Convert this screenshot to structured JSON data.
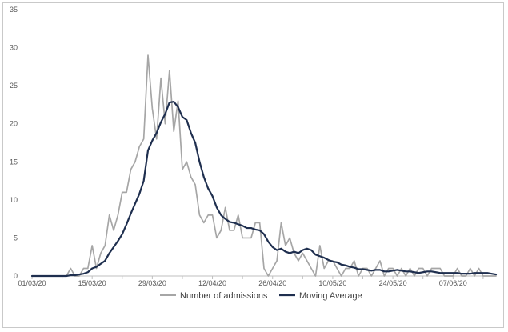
{
  "chart_data": {
    "type": "line",
    "title": "",
    "xlabel": "",
    "ylabel": "",
    "ylim": [
      0,
      35
    ],
    "yticks": [
      0,
      5,
      10,
      15,
      20,
      25,
      30,
      35
    ],
    "xlim": [
      "01/03/20",
      "17/06/20"
    ],
    "xtick_labels": [
      "01/03/20",
      "15/03/20",
      "29/03/20",
      "12/04/20",
      "26/04/20",
      "10/05/20",
      "24/05/20",
      "07/06/20"
    ],
    "legend_position": "bottom",
    "grid": false,
    "series": [
      {
        "name": "Number of admissions",
        "color": "#a6a6a6",
        "points": [
          [
            "01/03/20",
            0
          ],
          [
            "02/03/20",
            0
          ],
          [
            "03/03/20",
            0
          ],
          [
            "04/03/20",
            0
          ],
          [
            "05/03/20",
            0
          ],
          [
            "06/03/20",
            0
          ],
          [
            "07/03/20",
            0
          ],
          [
            "08/03/20",
            0
          ],
          [
            "09/03/20",
            0
          ],
          [
            "10/03/20",
            1
          ],
          [
            "11/03/20",
            0
          ],
          [
            "12/03/20",
            0
          ],
          [
            "13/03/20",
            1
          ],
          [
            "14/03/20",
            1
          ],
          [
            "15/03/20",
            4
          ],
          [
            "16/03/20",
            1
          ],
          [
            "17/03/20",
            3
          ],
          [
            "18/03/20",
            4
          ],
          [
            "19/03/20",
            8
          ],
          [
            "20/03/20",
            6
          ],
          [
            "21/03/20",
            8
          ],
          [
            "22/03/20",
            11
          ],
          [
            "23/03/20",
            11
          ],
          [
            "24/03/20",
            14
          ],
          [
            "25/03/20",
            15
          ],
          [
            "26/03/20",
            17
          ],
          [
            "27/03/20",
            18
          ],
          [
            "28/03/20",
            29
          ],
          [
            "29/03/20",
            22
          ],
          [
            "30/03/20",
            18
          ],
          [
            "31/03/20",
            26
          ],
          [
            "01/04/20",
            20
          ],
          [
            "02/04/20",
            27
          ],
          [
            "03/04/20",
            19
          ],
          [
            "04/04/20",
            23
          ],
          [
            "05/04/20",
            14
          ],
          [
            "06/04/20",
            15
          ],
          [
            "07/04/20",
            13
          ],
          [
            "08/04/20",
            12
          ],
          [
            "09/04/20",
            8
          ],
          [
            "10/04/20",
            7
          ],
          [
            "11/04/20",
            8
          ],
          [
            "12/04/20",
            8
          ],
          [
            "13/04/20",
            5
          ],
          [
            "14/04/20",
            6
          ],
          [
            "15/04/20",
            9
          ],
          [
            "16/04/20",
            6
          ],
          [
            "17/04/20",
            6
          ],
          [
            "18/04/20",
            8
          ],
          [
            "19/04/20",
            5
          ],
          [
            "20/04/20",
            5
          ],
          [
            "21/04/20",
            5
          ],
          [
            "22/04/20",
            7
          ],
          [
            "23/04/20",
            7
          ],
          [
            "24/04/20",
            1
          ],
          [
            "25/04/20",
            0
          ],
          [
            "26/04/20",
            1
          ],
          [
            "27/04/20",
            2
          ],
          [
            "28/04/20",
            7
          ],
          [
            "29/04/20",
            4
          ],
          [
            "30/04/20",
            5
          ],
          [
            "01/05/20",
            3
          ],
          [
            "02/05/20",
            2
          ],
          [
            "03/05/20",
            3
          ],
          [
            "04/05/20",
            2
          ],
          [
            "05/05/20",
            1
          ],
          [
            "06/05/20",
            0
          ],
          [
            "07/05/20",
            4
          ],
          [
            "08/05/20",
            1
          ],
          [
            "09/05/20",
            2
          ],
          [
            "10/05/20",
            2
          ],
          [
            "11/05/20",
            1
          ],
          [
            "12/05/20",
            0
          ],
          [
            "13/05/20",
            1
          ],
          [
            "14/05/20",
            1
          ],
          [
            "15/05/20",
            2
          ],
          [
            "16/05/20",
            0
          ],
          [
            "17/05/20",
            1
          ],
          [
            "18/05/20",
            1
          ],
          [
            "19/05/20",
            0
          ],
          [
            "20/05/20",
            1
          ],
          [
            "21/05/20",
            2
          ],
          [
            "22/05/20",
            0
          ],
          [
            "23/05/20",
            1
          ],
          [
            "24/05/20",
            1
          ],
          [
            "25/05/20",
            0
          ],
          [
            "26/05/20",
            1
          ],
          [
            "27/05/20",
            0
          ],
          [
            "28/05/20",
            1
          ],
          [
            "29/05/20",
            0
          ],
          [
            "30/05/20",
            1
          ],
          [
            "31/05/20",
            1
          ],
          [
            "01/06/20",
            0
          ],
          [
            "02/06/20",
            1
          ],
          [
            "03/06/20",
            1
          ],
          [
            "04/06/20",
            1
          ],
          [
            "05/06/20",
            0
          ],
          [
            "06/06/20",
            0
          ],
          [
            "07/06/20",
            0
          ],
          [
            "08/06/20",
            1
          ],
          [
            "09/06/20",
            0
          ],
          [
            "10/06/20",
            0
          ],
          [
            "11/06/20",
            1
          ],
          [
            "12/06/20",
            0
          ],
          [
            "13/06/20",
            1
          ],
          [
            "14/06/20",
            0
          ],
          [
            "15/06/20",
            0
          ],
          [
            "16/06/20",
            0
          ],
          [
            "17/06/20",
            0
          ]
        ]
      },
      {
        "name": "Moving Average",
        "color": "#1f2f4f",
        "points": [
          [
            "01/03/20",
            0
          ],
          [
            "02/03/20",
            0
          ],
          [
            "03/03/20",
            0
          ],
          [
            "04/03/20",
            0
          ],
          [
            "05/03/20",
            0
          ],
          [
            "06/03/20",
            0
          ],
          [
            "07/03/20",
            0
          ],
          [
            "08/03/20",
            0
          ],
          [
            "09/03/20",
            0
          ],
          [
            "10/03/20",
            0.1
          ],
          [
            "11/03/20",
            0.1
          ],
          [
            "12/03/20",
            0.2
          ],
          [
            "13/03/20",
            0.3
          ],
          [
            "14/03/20",
            0.5
          ],
          [
            "15/03/20",
            1
          ],
          [
            "16/03/20",
            1.2
          ],
          [
            "17/03/20",
            1.6
          ],
          [
            "18/03/20",
            2
          ],
          [
            "19/03/20",
            3
          ],
          [
            "20/03/20",
            3.8
          ],
          [
            "21/03/20",
            4.6
          ],
          [
            "22/03/20",
            5.5
          ],
          [
            "23/03/20",
            6.8
          ],
          [
            "24/03/20",
            8.2
          ],
          [
            "25/03/20",
            9.5
          ],
          [
            "26/03/20",
            10.8
          ],
          [
            "27/03/20",
            12.5
          ],
          [
            "28/03/20",
            16.5
          ],
          [
            "29/03/20",
            17.8
          ],
          [
            "30/03/20",
            18.8
          ],
          [
            "31/03/20",
            20.2
          ],
          [
            "01/04/20",
            21.3
          ],
          [
            "02/04/20",
            22.8
          ],
          [
            "03/04/20",
            22.9
          ],
          [
            "04/04/20",
            22.2
          ],
          [
            "05/04/20",
            20.9
          ],
          [
            "06/04/20",
            20.5
          ],
          [
            "07/04/20",
            18.8
          ],
          [
            "08/04/20",
            17.5
          ],
          [
            "09/04/20",
            15
          ],
          [
            "10/04/20",
            13
          ],
          [
            "11/04/20",
            11.5
          ],
          [
            "12/04/20",
            10.5
          ],
          [
            "13/04/20",
            9
          ],
          [
            "14/04/20",
            8
          ],
          [
            "15/04/20",
            7.5
          ],
          [
            "16/04/20",
            7.1
          ],
          [
            "17/04/20",
            7
          ],
          [
            "18/04/20",
            6.8
          ],
          [
            "19/04/20",
            6.6
          ],
          [
            "20/04/20",
            6.3
          ],
          [
            "21/04/20",
            6.3
          ],
          [
            "22/04/20",
            6.1
          ],
          [
            "23/04/20",
            6
          ],
          [
            "24/04/20",
            5.5
          ],
          [
            "25/04/20",
            4.5
          ],
          [
            "26/04/20",
            3.8
          ],
          [
            "27/04/20",
            3.4
          ],
          [
            "28/04/20",
            3.6
          ],
          [
            "29/04/20",
            3.2
          ],
          [
            "30/04/20",
            3
          ],
          [
            "01/05/20",
            3.2
          ],
          [
            "02/05/20",
            3
          ],
          [
            "03/05/20",
            3.4
          ],
          [
            "04/05/20",
            3.6
          ],
          [
            "05/05/20",
            3.4
          ],
          [
            "06/05/20",
            2.8
          ],
          [
            "07/05/20",
            2.6
          ],
          [
            "08/05/20",
            2.4
          ],
          [
            "09/05/20",
            2.1
          ],
          [
            "10/05/20",
            1.9
          ],
          [
            "11/05/20",
            1.8
          ],
          [
            "12/05/20",
            1.5
          ],
          [
            "13/05/20",
            1.4
          ],
          [
            "14/05/20",
            1.2
          ],
          [
            "15/05/20",
            1.1
          ],
          [
            "16/05/20",
            0.9
          ],
          [
            "17/05/20",
            0.9
          ],
          [
            "18/05/20",
            0.8
          ],
          [
            "19/05/20",
            0.7
          ],
          [
            "20/05/20",
            0.8
          ],
          [
            "21/05/20",
            0.8
          ],
          [
            "22/05/20",
            0.6
          ],
          [
            "23/05/20",
            0.6
          ],
          [
            "24/05/20",
            0.7
          ],
          [
            "25/05/20",
            0.8
          ],
          [
            "26/05/20",
            0.7
          ],
          [
            "27/05/20",
            0.6
          ],
          [
            "28/05/20",
            0.6
          ],
          [
            "29/05/20",
            0.5
          ],
          [
            "30/05/20",
            0.4
          ],
          [
            "31/05/20",
            0.5
          ],
          [
            "01/06/20",
            0.6
          ],
          [
            "02/06/20",
            0.6
          ],
          [
            "03/06/20",
            0.5
          ],
          [
            "04/06/20",
            0.4
          ],
          [
            "05/06/20",
            0.4
          ],
          [
            "06/06/20",
            0.4
          ],
          [
            "07/06/20",
            0.4
          ],
          [
            "08/06/20",
            0.4
          ],
          [
            "09/06/20",
            0.3
          ],
          [
            "10/06/20",
            0.3
          ],
          [
            "11/06/20",
            0.3
          ],
          [
            "12/06/20",
            0.4
          ],
          [
            "13/06/20",
            0.4
          ],
          [
            "14/06/20",
            0.4
          ],
          [
            "15/06/20",
            0.4
          ],
          [
            "16/06/20",
            0.3
          ],
          [
            "17/06/20",
            0.2
          ]
        ]
      }
    ]
  }
}
